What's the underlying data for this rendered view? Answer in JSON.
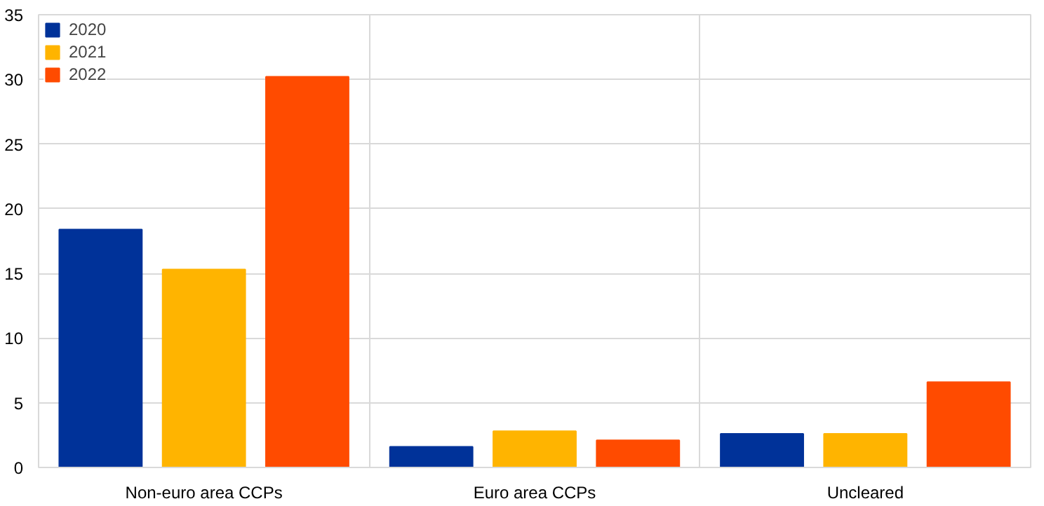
{
  "chart_data": {
    "type": "bar",
    "categories": [
      "Non-euro area CCPs",
      "Euro area CCPs",
      "Uncleared"
    ],
    "series": [
      {
        "name": "2020",
        "color": "#003299",
        "values": [
          18.4,
          1.6,
          2.6
        ]
      },
      {
        "name": "2021",
        "color": "#ffb400",
        "values": [
          15.3,
          2.8,
          2.6
        ]
      },
      {
        "name": "2022",
        "color": "#ff4b00",
        "values": [
          30.2,
          2.1,
          6.6
        ]
      }
    ],
    "ylim": [
      0,
      35
    ],
    "yticks": [
      0,
      5,
      10,
      15,
      20,
      25,
      30,
      35
    ],
    "grid": true,
    "legend": "top left"
  }
}
